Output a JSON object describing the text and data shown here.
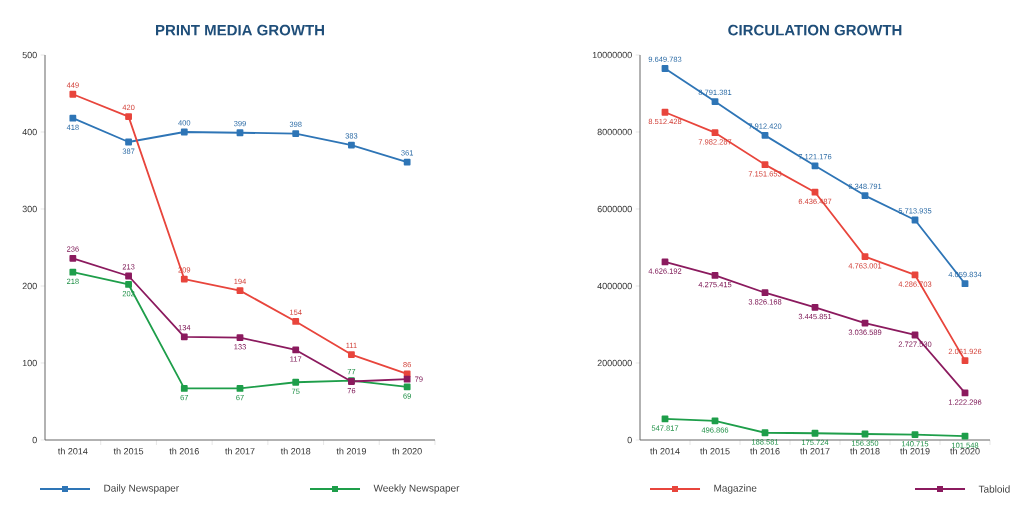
{
  "chart_data": [
    {
      "type": "line",
      "title": "PRINT MEDIA GROWTH",
      "categories": [
        "th 2014",
        "th 2015",
        "th 2016",
        "th 2017",
        "th 2018",
        "th 2019",
        "th 2020"
      ],
      "ylim": [
        0,
        500
      ],
      "yticks": [
        0,
        100,
        200,
        300,
        400,
        500
      ],
      "marker": "square",
      "legend": "bottom",
      "data_labels": true,
      "series": [
        {
          "name": "Daily Newspaper",
          "color": "#2e75b6",
          "values": [
            418,
            387,
            400,
            399,
            398,
            383,
            361
          ]
        },
        {
          "name": "Weekly Newspaper",
          "color": "#1e9e4a",
          "values": [
            218,
            202,
            67,
            67,
            75,
            77,
            69
          ]
        },
        {
          "color": "#e8453c",
          "values": [
            449,
            420,
            209,
            194,
            154,
            111,
            86
          ]
        },
        {
          "color": "#8b1a5e",
          "values": [
            236,
            213,
            134,
            133,
            117,
            76,
            79
          ]
        }
      ]
    },
    {
      "type": "line",
      "title": "CIRCULATION GROWTH",
      "categories": [
        "th 2014",
        "th 2015",
        "th 2016",
        "th 2017",
        "th 2018",
        "th 2019",
        "th 2020"
      ],
      "ylim": [
        0,
        10000000
      ],
      "yticks": [
        0,
        2000000,
        4000000,
        6000000,
        8000000,
        10000000
      ],
      "marker": "square",
      "legend": "bottom",
      "series": [
        {
          "color": "#2e75b6",
          "values": [
            9649783,
            8791381,
            7912420,
            7121176,
            6348791,
            5713935,
            4059834
          ],
          "value_labels": [
            "9.649.783",
            "8.791.381",
            "7.912.420",
            "7.121.176",
            "6.348.791",
            "5.713.935",
            "4.059.834"
          ]
        },
        {
          "color": "#1e9e4a",
          "values": [
            547817,
            496866,
            188581,
            175724,
            156350,
            140715,
            101548
          ],
          "value_labels": [
            "547.817",
            "496.866",
            "188.581",
            "175.724",
            "156.350",
            "140.715",
            "101.548"
          ]
        },
        {
          "name": "Magazine",
          "color": "#e8453c",
          "values": [
            8512428,
            7982287,
            7151653,
            6436487,
            4763001,
            4286703,
            2061926
          ],
          "value_labels": [
            "8.512.428",
            "7.982.287",
            "7.151.653",
            "6.436.487",
            "4.763.001",
            "4.286.703",
            "2.061.926"
          ]
        },
        {
          "name": "Tabloid",
          "color": "#8b1a5e",
          "values": [
            4626192,
            4275415,
            3826168,
            3445851,
            3036589,
            2727530,
            1222296
          ],
          "value_labels": [
            "4.626.192",
            "4.275.415",
            "3.826.168",
            "3.445.851",
            "3.036.589",
            "2.727.530",
            "1.222.296"
          ]
        }
      ]
    }
  ]
}
